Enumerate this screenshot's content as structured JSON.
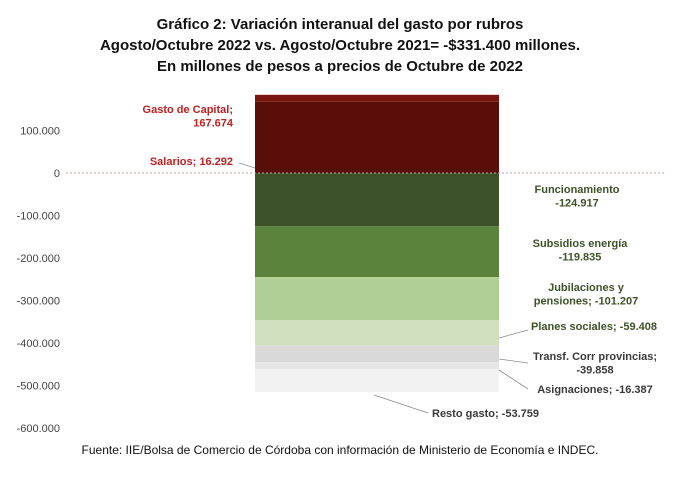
{
  "title": {
    "line1": "Gráfico 2: Variación interanual del gasto por rubros",
    "line2": "Agosto/Octubre 2022 vs. Agosto/Octubre 2021= -$331.400 millones.",
    "line3": "En millones de pesos a precios de Octubre de 2022"
  },
  "source": "Fuente: IIE/Bolsa de Comercio de Córdoba con información de Ministerio de Economía e INDEC.",
  "chart_data": {
    "type": "bar",
    "stacked": true,
    "title": "Gráfico 2: Variación interanual del gasto por rubros",
    "subtitle": "Agosto/Octubre 2022 vs. Agosto/Octubre 2021= -$331.400 millones. En millones de pesos a precios de Octubre de 2022",
    "xlabel": "",
    "ylabel": "",
    "ylim": [
      -600000,
      100000
    ],
    "yticks": [
      100000,
      0,
      -100000,
      -200000,
      -300000,
      -400000,
      -500000,
      -600000
    ],
    "ytick_labels": [
      "100.000",
      "0",
      "-100.000",
      "-200.000",
      "-300.000",
      "-400.000",
      "-500.000",
      "-600.000"
    ],
    "grid": false,
    "series": [
      {
        "name": "Gasto de Capital",
        "value": 167674,
        "label_lines": [
          "Gasto de Capital;",
          "167.674"
        ],
        "color": "#5a0e0a",
        "text_color": "#c0201f"
      },
      {
        "name": "Salarios",
        "value": 16292,
        "label_lines": [
          "Salarios; 16.292"
        ],
        "color": "#7a1410",
        "text_color": "#c0201f"
      },
      {
        "name": "Funcionamiento",
        "value": -124917,
        "label_lines": [
          "Funcionamiento",
          "-124.917"
        ],
        "color": "#3d5228",
        "text_color": "#3d5228"
      },
      {
        "name": "Subsidios energía",
        "value": -119835,
        "label_lines": [
          "Subsidios energía",
          "-119.835"
        ],
        "color": "#5c833b",
        "text_color": "#3d5228"
      },
      {
        "name": "Jubilaciones y pensiones",
        "value": -101207,
        "label_lines": [
          "Jubilaciones y",
          "pensiones; -101.207"
        ],
        "color": "#b0cf94",
        "text_color": "#3d5228"
      },
      {
        "name": "Planes sociales",
        "value": -59408,
        "label_lines": [
          "Planes sociales; -59.408"
        ],
        "color": "#cfe0be",
        "text_color": "#3d5228"
      },
      {
        "name": "Transf. Corr provincias",
        "value": -39858,
        "label_lines": [
          "Transf. Corr provincias;",
          "-39.858"
        ],
        "color": "#d9d9d9",
        "text_color": "#3a3a3a"
      },
      {
        "name": "Asignaciones",
        "value": -16387,
        "label_lines": [
          "Asignaciones; -16.387"
        ],
        "color": "#e6e6e6",
        "text_color": "#3a3a3a"
      },
      {
        "name": "Resto gasto",
        "value": -53759,
        "label_lines": [
          "Resto gasto; -53.759"
        ],
        "color": "#f2f2f2",
        "text_color": "#3a3a3a"
      }
    ]
  }
}
